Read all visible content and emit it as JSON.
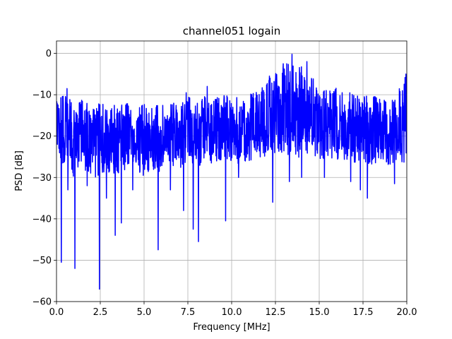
{
  "chart_data": {
    "type": "line",
    "title": "channel051 logain",
    "xlabel": "Frequency [MHz]",
    "ylabel": "PSD [dB]",
    "xlim": [
      0,
      20
    ],
    "ylim": [
      -60,
      3
    ],
    "grid": true,
    "x_ticks": [
      0,
      2.5,
      5,
      7.5,
      10,
      12.5,
      15,
      17.5,
      20
    ],
    "x_tick_labels": [
      "0.0",
      "2.5",
      "5.0",
      "7.5",
      "10.0",
      "12.5",
      "15.0",
      "17.5",
      "20.0"
    ],
    "y_ticks": [
      0,
      -10,
      -20,
      -30,
      -40,
      -50,
      -60
    ],
    "y_tick_labels": [
      "0",
      "−10",
      "−20",
      "−30",
      "−40",
      "−50",
      "−60"
    ],
    "series": [
      {
        "color": "#0000ff",
        "envelope": {
          "x": [
            0,
            0.5,
            1,
            1.5,
            2,
            2.5,
            3,
            3.5,
            4,
            4.5,
            5,
            5.5,
            6,
            6.5,
            7,
            7.5,
            8,
            8.5,
            9,
            9.5,
            10,
            10.5,
            11,
            11.5,
            12,
            12.5,
            13,
            13.5,
            14,
            14.5,
            15,
            15.5,
            16,
            16.5,
            17,
            17.5,
            18,
            18.5,
            19,
            19.5,
            20
          ],
          "upper": [
            -11,
            -10,
            -12,
            -11,
            -13,
            -12,
            -13,
            -12,
            -12,
            -13,
            -12,
            -13,
            -12,
            -12,
            -12,
            -10,
            -12,
            -10,
            -11,
            -10,
            -10,
            -11,
            -10,
            -9,
            -6,
            -4,
            -3,
            -1,
            -2,
            -5,
            -8,
            -9,
            -8,
            -10,
            -9,
            -10,
            -10,
            -11,
            -10,
            -9,
            -5
          ],
          "lower": [
            -29,
            -28,
            -30,
            -28,
            -30,
            -30,
            -30,
            -29,
            -29,
            -28,
            -30,
            -28,
            -30,
            -27,
            -28,
            -26,
            -28,
            -26,
            -27,
            -26,
            -26,
            -27,
            -26,
            -25,
            -26,
            -25,
            -25,
            -24,
            -26,
            -24,
            -26,
            -25,
            -26,
            -26,
            -27,
            -26,
            -27,
            -26,
            -27,
            -26,
            -28
          ]
        },
        "dips": [
          {
            "x": 0.28,
            "y": -50.5
          },
          {
            "x": 0.65,
            "y": -33
          },
          {
            "x": 1.05,
            "y": -52
          },
          {
            "x": 1.75,
            "y": -32
          },
          {
            "x": 2.45,
            "y": -57
          },
          {
            "x": 2.85,
            "y": -35
          },
          {
            "x": 3.35,
            "y": -44
          },
          {
            "x": 3.7,
            "y": -41
          },
          {
            "x": 4.35,
            "y": -33
          },
          {
            "x": 5.8,
            "y": -47.5
          },
          {
            "x": 6.5,
            "y": -33
          },
          {
            "x": 7.25,
            "y": -38
          },
          {
            "x": 7.8,
            "y": -42.5
          },
          {
            "x": 8.1,
            "y": -45.5
          },
          {
            "x": 9.65,
            "y": -40.5
          },
          {
            "x": 10.4,
            "y": -30
          },
          {
            "x": 12.35,
            "y": -36
          },
          {
            "x": 13.3,
            "y": -31
          },
          {
            "x": 14.0,
            "y": -30
          },
          {
            "x": 15.3,
            "y": -30
          },
          {
            "x": 16.8,
            "y": -31
          },
          {
            "x": 17.35,
            "y": -33
          },
          {
            "x": 17.75,
            "y": -35
          },
          {
            "x": 19.3,
            "y": -31.5
          }
        ],
        "peaks": [
          {
            "x": 0.6,
            "y": -8.5
          },
          {
            "x": 7.4,
            "y": -9.5
          },
          {
            "x": 8.6,
            "y": -8
          },
          {
            "x": 12.95,
            "y": -2.5
          },
          {
            "x": 13.45,
            "y": -0.2
          },
          {
            "x": 14.3,
            "y": -2
          },
          {
            "x": 19.95,
            "y": -5
          }
        ]
      }
    ]
  }
}
